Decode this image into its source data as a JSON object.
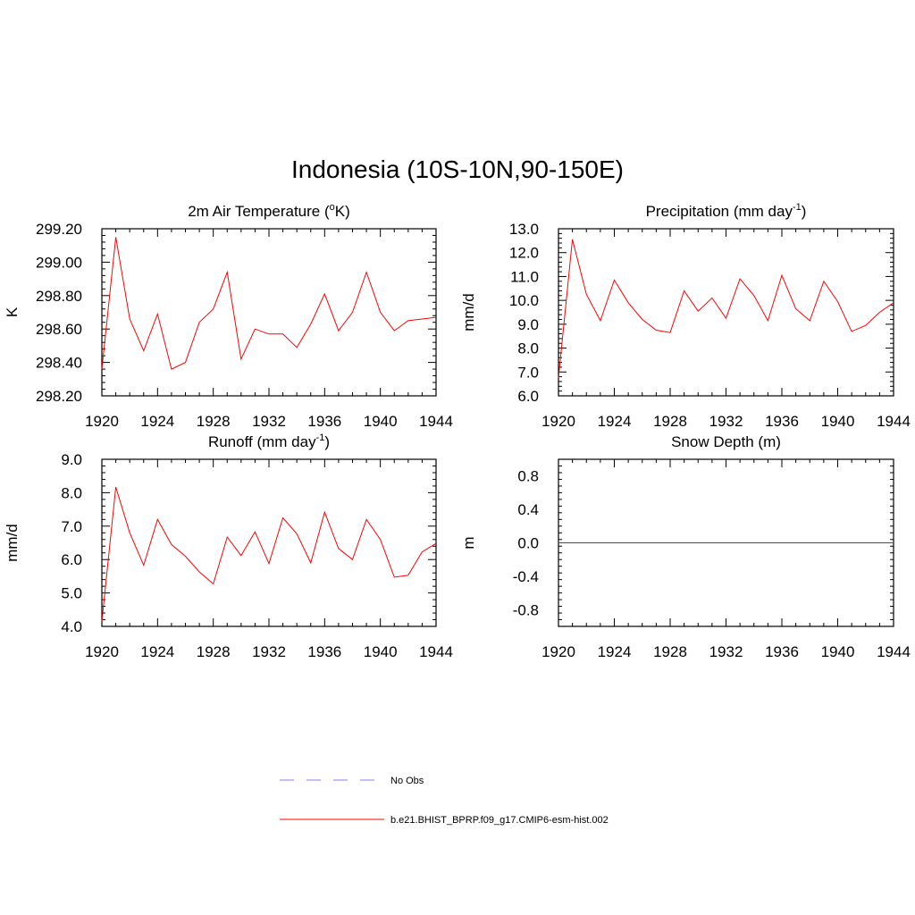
{
  "figure": {
    "title": "Indonesia (10S-10N,90-150E)"
  },
  "legend": [
    {
      "label": "No Obs",
      "color": "#9a9aff",
      "style": "dashed"
    },
    {
      "label": "b.e21.BHIST_BPRP.f09_g17.CMIP6-esm-hist.002",
      "color": "#ff0000",
      "style": "solid"
    }
  ],
  "chart_data": [
    {
      "type": "line",
      "title_parts": [
        "2m Air Temperature (",
        "o",
        "K)"
      ],
      "ylabel": "K",
      "xlim": [
        1920,
        1944
      ],
      "ylim": [
        298.2,
        299.2
      ],
      "xticks": [
        "1920",
        "1924",
        "1928",
        "1932",
        "1936",
        "1940",
        "1944"
      ],
      "yticks": [
        "298.20",
        "298.40",
        "298.60",
        "298.80",
        "299.00",
        "299.20"
      ],
      "x": [
        1920,
        1921,
        1922,
        1923,
        1924,
        1925,
        1926,
        1927,
        1928,
        1929,
        1930,
        1931,
        1932,
        1933,
        1934,
        1935,
        1936,
        1937,
        1938,
        1939,
        1940,
        1941,
        1942,
        1943,
        1944
      ],
      "series": [
        {
          "color": "#ff0000",
          "values": [
            298.36,
            299.15,
            298.66,
            298.47,
            298.69,
            298.36,
            298.4,
            298.64,
            298.72,
            298.94,
            298.42,
            298.6,
            298.57,
            298.57,
            298.49,
            298.63,
            298.81,
            298.59,
            298.7,
            298.94,
            298.7,
            298.59,
            298.65,
            298.66,
            298.67
          ]
        }
      ]
    },
    {
      "type": "line",
      "title_parts": [
        "Precipitation (mm day",
        "-1",
        ")"
      ],
      "ylabel": "mm/d",
      "xlim": [
        1920,
        1944
      ],
      "ylim": [
        6.0,
        13.0
      ],
      "xticks": [
        "1920",
        "1924",
        "1928",
        "1932",
        "1936",
        "1940",
        "1944"
      ],
      "yticks": [
        "6.0",
        "7.0",
        "8.0",
        "9.0",
        "10.0",
        "11.0",
        "12.0",
        "13.0"
      ],
      "x": [
        1920,
        1921,
        1922,
        1923,
        1924,
        1925,
        1926,
        1927,
        1928,
        1929,
        1930,
        1931,
        1932,
        1933,
        1934,
        1935,
        1936,
        1937,
        1938,
        1939,
        1940,
        1941,
        1942,
        1943,
        1944
      ],
      "series": [
        {
          "color": "#ff0000",
          "values": [
            6.75,
            12.55,
            10.25,
            9.15,
            10.85,
            9.9,
            9.2,
            8.75,
            8.65,
            10.4,
            9.55,
            10.1,
            9.25,
            10.9,
            10.2,
            9.15,
            11.05,
            9.65,
            9.15,
            10.8,
            9.95,
            8.7,
            8.95,
            9.5,
            9.9
          ]
        }
      ]
    },
    {
      "type": "line",
      "title_parts": [
        "Runoff (mm day",
        "-1",
        ")"
      ],
      "ylabel": "mm/d",
      "xlim": [
        1920,
        1944
      ],
      "ylim": [
        4.0,
        9.0
      ],
      "xticks": [
        "1920",
        "1924",
        "1928",
        "1932",
        "1936",
        "1940",
        "1944"
      ],
      "yticks": [
        "4.0",
        "5.0",
        "6.0",
        "7.0",
        "8.0",
        "9.0"
      ],
      "x": [
        1920,
        1921,
        1922,
        1923,
        1924,
        1925,
        1926,
        1927,
        1928,
        1929,
        1930,
        1931,
        1932,
        1933,
        1934,
        1935,
        1936,
        1937,
        1938,
        1939,
        1940,
        1941,
        1942,
        1943,
        1944
      ],
      "series": [
        {
          "color": "#ff0000",
          "values": [
            4.15,
            8.17,
            6.8,
            5.83,
            7.2,
            6.45,
            6.1,
            5.63,
            5.27,
            6.67,
            6.12,
            6.83,
            5.88,
            7.25,
            6.77,
            5.9,
            7.42,
            6.33,
            6.0,
            7.2,
            6.6,
            5.47,
            5.53,
            6.23,
            6.48
          ]
        }
      ]
    },
    {
      "type": "line",
      "title_parts": [
        "Snow Depth (m)"
      ],
      "ylabel": "m",
      "xlim": [
        1920,
        1944
      ],
      "ylim": [
        -1.0,
        1.0
      ],
      "xticks": [
        "1920",
        "1924",
        "1928",
        "1932",
        "1936",
        "1940",
        "1944"
      ],
      "yticks": [
        "-0.8",
        "-0.4",
        "0.0",
        "0.4",
        "0.8"
      ],
      "ytick_values": [
        -0.8,
        -0.4,
        0.0,
        0.4,
        0.8
      ],
      "x": [
        1920,
        1944
      ],
      "series": [
        {
          "color": "#ff0000",
          "values": [
            0.0,
            0.0
          ]
        }
      ]
    }
  ]
}
